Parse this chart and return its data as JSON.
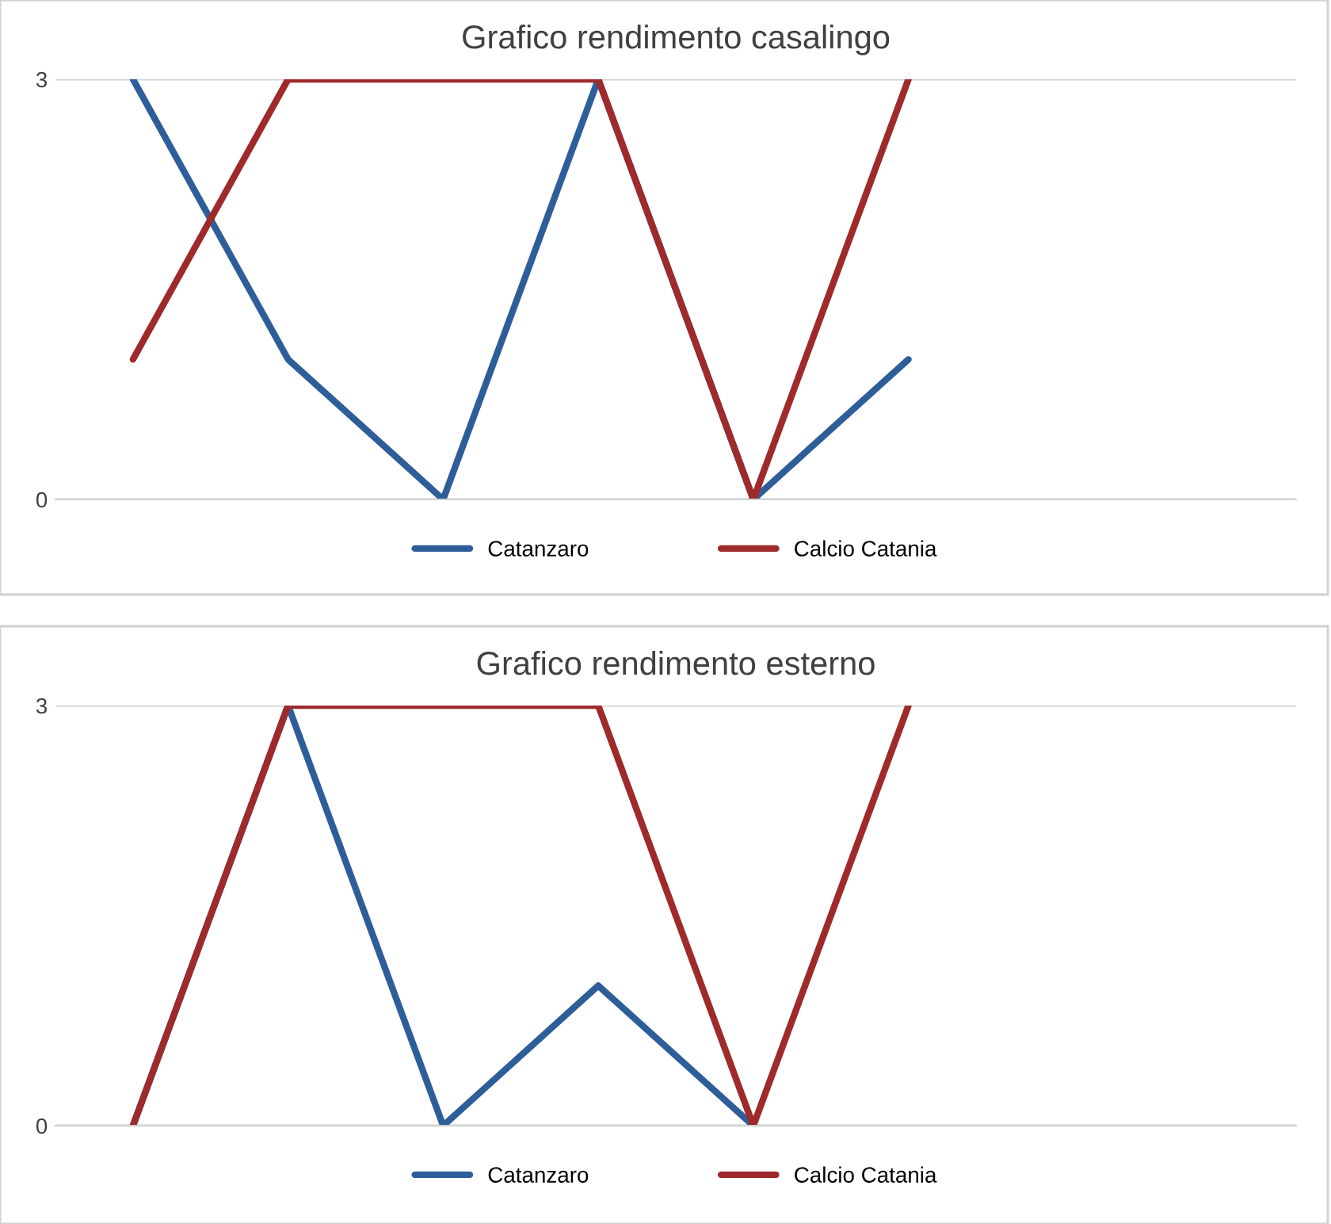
{
  "chart_data": [
    {
      "type": "line",
      "title": "Grafico rendimento casalingo",
      "categories": [
        null,
        null,
        null,
        null,
        null,
        null,
        null,
        null
      ],
      "ylim": [
        0,
        3
      ],
      "yticks": [
        0,
        3
      ],
      "grid": "y",
      "legend": "bottom",
      "tick_labels": "y",
      "series": [
        {
          "name": "Catanzaro",
          "color": "#2e5e9a",
          "values": [
            3,
            1,
            0,
            3,
            0,
            1,
            null,
            null
          ]
        },
        {
          "name": "Calcio Catania",
          "color": "#9e2a2b",
          "values": [
            1,
            3,
            3,
            3,
            0,
            3,
            null,
            null
          ]
        }
      ]
    },
    {
      "type": "line",
      "title": "Grafico rendimento esterno",
      "categories": [
        null,
        null,
        null,
        null,
        null,
        null,
        null,
        null
      ],
      "ylim": [
        0,
        3
      ],
      "yticks": [
        0,
        3
      ],
      "grid": "y",
      "legend": "bottom",
      "tick_labels": "y",
      "series": [
        {
          "name": "Catanzaro",
          "color": "#2e5e9a",
          "values": [
            0,
            3,
            0,
            1,
            0,
            null,
            null,
            null
          ]
        },
        {
          "name": "Calcio Catania",
          "color": "#9e2a2b",
          "values": [
            0,
            3,
            3,
            3,
            0,
            3,
            null,
            null
          ]
        }
      ]
    }
  ]
}
